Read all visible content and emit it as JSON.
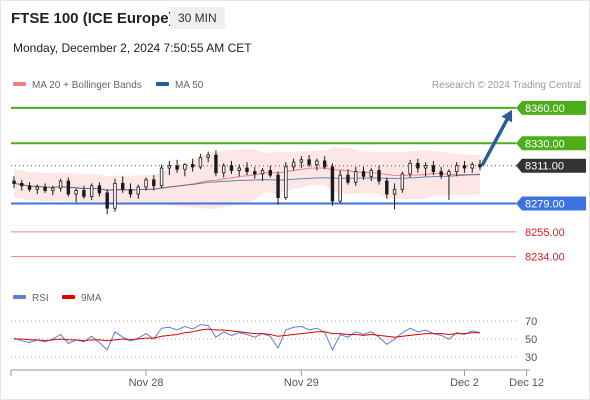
{
  "header": {
    "title": "FTSE 100 (ICE Europe)",
    "timeframe": "30 MIN",
    "datetime": "Monday, December 2, 2024 7:50:55 AM CET"
  },
  "legend": {
    "items": [
      {
        "label": "MA 20 + Bollinger Bands",
        "color": "#f08080"
      },
      {
        "label": "MA 50",
        "color": "#2b5b9c"
      }
    ],
    "credit": "Research © 2024 Trading Central"
  },
  "rsi_legend": {
    "items": [
      {
        "label": "RSI",
        "color": "#5a7fd6"
      },
      {
        "label": "9MA",
        "color": "#e00000"
      }
    ]
  },
  "colors": {
    "resistance": "#4caf1a",
    "pivot": "#3d72e0",
    "support": "#f08080",
    "current": "#333333",
    "arrow": "#2b5b9c",
    "candle": "#1a1a1a",
    "band": "#fde0e0"
  },
  "chart_data": [
    {
      "type": "candlestick",
      "price_range": [
        8210,
        8370
      ],
      "current_price": 8311.0,
      "levels": [
        {
          "value": 8360.0,
          "label": "8360.00",
          "kind": "resistance"
        },
        {
          "value": 8330.0,
          "label": "8330.00",
          "kind": "resistance"
        },
        {
          "value": 8311.0,
          "label": "8311.00",
          "kind": "current"
        },
        {
          "value": 8279.0,
          "label": "8279.00",
          "kind": "pivot"
        },
        {
          "value": 8255.0,
          "label": "8255.00",
          "kind": "support"
        },
        {
          "value": 8234.0,
          "label": "8234.00",
          "kind": "support"
        }
      ],
      "x_ticks": [
        {
          "label": "Nov 28",
          "index": 17
        },
        {
          "label": "Nov 29",
          "index": 37
        },
        {
          "label": "Dec 2",
          "index": 58
        },
        {
          "label": "Dec 12",
          "index": 66
        }
      ],
      "candles": [
        [
          8298,
          8302,
          8292,
          8296
        ],
        [
          8296,
          8299,
          8290,
          8294
        ],
        [
          8294,
          8297,
          8289,
          8291
        ],
        [
          8291,
          8295,
          8287,
          8293
        ],
        [
          8293,
          8296,
          8288,
          8290
        ],
        [
          8290,
          8294,
          8286,
          8292
        ],
        [
          8292,
          8300,
          8289,
          8298
        ],
        [
          8298,
          8301,
          8285,
          8287
        ],
        [
          8287,
          8292,
          8280,
          8290
        ],
        [
          8290,
          8294,
          8283,
          8285
        ],
        [
          8285,
          8296,
          8282,
          8294
        ],
        [
          8294,
          8297,
          8285,
          8288
        ],
        [
          8288,
          8291,
          8270,
          8275
        ],
        [
          8275,
          8300,
          8272,
          8296
        ],
        [
          8296,
          8302,
          8288,
          8291
        ],
        [
          8291,
          8296,
          8284,
          8287
        ],
        [
          8287,
          8295,
          8283,
          8293
        ],
        [
          8293,
          8301,
          8290,
          8299
        ],
        [
          8299,
          8303,
          8290,
          8294
        ],
        [
          8294,
          8312,
          8292,
          8309
        ],
        [
          8309,
          8315,
          8303,
          8311
        ],
        [
          8311,
          8316,
          8305,
          8308
        ],
        [
          8308,
          8313,
          8302,
          8312
        ],
        [
          8312,
          8317,
          8306,
          8310
        ],
        [
          8310,
          8321,
          8308,
          8318
        ],
        [
          8318,
          8323,
          8314,
          8320
        ],
        [
          8320,
          8324,
          8302,
          8305
        ],
        [
          8305,
          8313,
          8301,
          8311
        ],
        [
          8311,
          8315,
          8304,
          8307
        ],
        [
          8307,
          8312,
          8302,
          8309
        ],
        [
          8309,
          8314,
          8303,
          8306
        ],
        [
          8306,
          8310,
          8300,
          8304
        ],
        [
          8304,
          8309,
          8298,
          8307
        ],
        [
          8307,
          8311,
          8301,
          8303
        ],
        [
          8303,
          8306,
          8278,
          8284
        ],
        [
          8284,
          8314,
          8282,
          8310
        ],
        [
          8310,
          8317,
          8307,
          8314
        ],
        [
          8314,
          8319,
          8309,
          8316
        ],
        [
          8316,
          8320,
          8310,
          8312
        ],
        [
          8312,
          8317,
          8307,
          8315
        ],
        [
          8315,
          8319,
          8308,
          8310
        ],
        [
          8310,
          8313,
          8277,
          8281
        ],
        [
          8281,
          8307,
          8279,
          8303
        ],
        [
          8303,
          8308,
          8295,
          8297
        ],
        [
          8297,
          8310,
          8294,
          8306
        ],
        [
          8306,
          8310,
          8299,
          8302
        ],
        [
          8302,
          8309,
          8298,
          8307
        ],
        [
          8307,
          8311,
          8295,
          8298
        ],
        [
          8298,
          8301,
          8283,
          8287
        ],
        [
          8287,
          8296,
          8274,
          8291
        ],
        [
          8291,
          8306,
          8288,
          8304
        ],
        [
          8304,
          8316,
          8301,
          8313
        ],
        [
          8313,
          8317,
          8305,
          8309
        ],
        [
          8309,
          8314,
          8302,
          8311
        ],
        [
          8311,
          8315,
          8303,
          8306
        ],
        [
          8306,
          8310,
          8300,
          8303
        ],
        [
          8303,
          8308,
          8282,
          8306
        ],
        [
          8306,
          8314,
          8302,
          8311
        ],
        [
          8311,
          8315,
          8305,
          8309
        ],
        [
          8309,
          8314,
          8305,
          8312
        ],
        [
          8312,
          8316,
          8307,
          8310
        ]
      ],
      "rsi": {
        "range": [
          20,
          80
        ],
        "ticks": [
          70,
          50,
          30
        ],
        "values": [
          51,
          48,
          46,
          49,
          47,
          50,
          55,
          45,
          49,
          47,
          53,
          46,
          38,
          58,
          52,
          48,
          51,
          56,
          50,
          62,
          63,
          60,
          64,
          61,
          66,
          65,
          52,
          58,
          54,
          57,
          55,
          52,
          56,
          53,
          40,
          60,
          63,
          64,
          60,
          62,
          57,
          38,
          55,
          52,
          58,
          55,
          58,
          52,
          44,
          50,
          57,
          62,
          58,
          60,
          56,
          54,
          50,
          57,
          55,
          59,
          57
        ],
        "ma9": [
          50,
          50,
          49,
          49,
          48,
          49,
          50,
          49,
          49,
          48,
          49,
          49,
          48,
          49,
          50,
          49,
          50,
          51,
          51,
          53,
          54,
          55,
          57,
          58,
          60,
          61,
          60,
          60,
          59,
          58,
          57,
          56,
          56,
          55,
          53,
          54,
          55,
          56,
          57,
          58,
          58,
          56,
          56,
          55,
          55,
          54,
          55,
          54,
          53,
          52,
          53,
          54,
          55,
          56,
          56,
          56,
          55,
          56,
          56,
          57,
          57
        ]
      }
    }
  ]
}
